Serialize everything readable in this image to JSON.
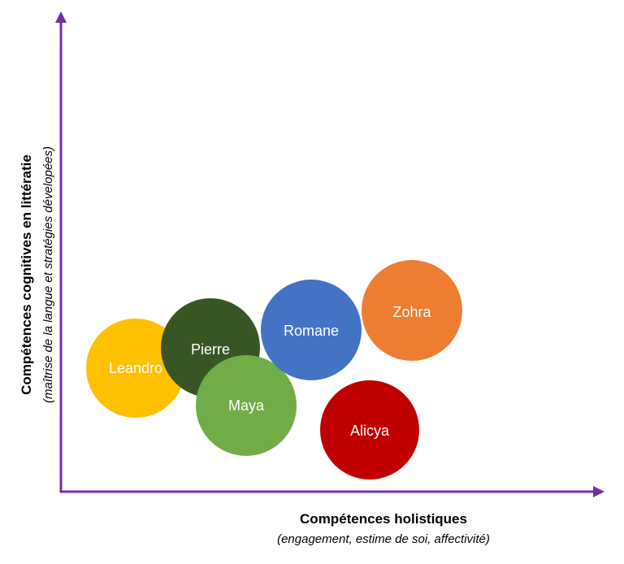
{
  "axes": {
    "color": "#7030a0",
    "x_title": "Compétences holistiques",
    "x_subtitle": "(engagement, estime de soi, affectivité)",
    "y_title": "Compétences cognitives en littératie",
    "y_subtitle": "(maîtrise de la langue et stratégies dévelopées)"
  },
  "bubbles": [
    {
      "name": "Leandro",
      "color": "#ffc000"
    },
    {
      "name": "Pierre",
      "color": "#375623"
    },
    {
      "name": "Maya",
      "color": "#70ad47"
    },
    {
      "name": "Romane",
      "color": "#4472c4"
    },
    {
      "name": "Zohra",
      "color": "#ed7d31"
    },
    {
      "name": "Alicya",
      "color": "#c00000"
    }
  ]
}
